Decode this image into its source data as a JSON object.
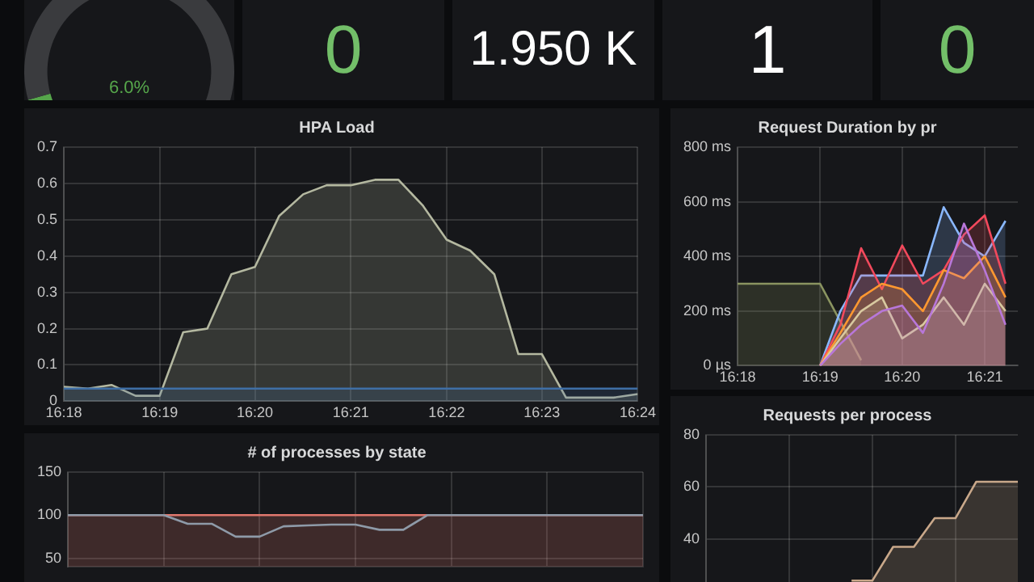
{
  "chart_data": [
    {
      "type": "donut",
      "categories": [
        null,
        null
      ],
      "values": [
        6,
        94
      ],
      "colors": [
        "#56a64b",
        "#3a3b3e"
      ],
      "annotations": [
        "6.0%"
      ]
    },
    {
      "type": "other",
      "annotations": [
        "0",
        "1.950 K",
        "1",
        "0"
      ],
      "colors": [
        "#73bf69",
        "#ffffff",
        "#ffffff",
        "#73bf69"
      ]
    },
    {
      "type": "area",
      "title": "HPA Load",
      "x": [
        16.3,
        16.3042,
        16.3083,
        16.3125,
        16.3167,
        16.3208,
        16.325,
        16.3292,
        16.3333,
        16.3375,
        16.3417,
        16.3458,
        16.35,
        16.3542,
        16.3583,
        16.3625,
        16.3667,
        16.3708,
        16.375,
        16.3792,
        16.3833,
        16.3875,
        16.3917,
        16.3958,
        16.4
      ],
      "series": [
        {
          "color": "#b4b8a0",
          "values": [
            0.04,
            0.035,
            0.045,
            0.015,
            0.015,
            0.19,
            0.2,
            0.35,
            0.37,
            0.51,
            0.57,
            0.595,
            0.595,
            0.61,
            0.61,
            0.54,
            0.445,
            0.415,
            0.35,
            0.13,
            0.13,
            0.01,
            0.01,
            0.01,
            0.02
          ]
        },
        {
          "color": "#3f6fa6",
          "values": [
            0.035,
            0.035,
            0.035,
            0.035,
            0.035,
            0.035,
            0.035,
            0.035,
            0.035,
            0.035,
            0.035,
            0.035,
            0.035,
            0.035,
            0.035,
            0.035,
            0.035,
            0.035,
            0.035,
            0.035,
            0.035,
            0.035,
            0.035,
            0.035,
            0.035
          ]
        }
      ],
      "xlim": [
        16.3,
        16.4
      ],
      "xticks": [
        {
          "value": 16.3,
          "label": "16:18"
        },
        {
          "value": 16.3167,
          "label": "16:19"
        },
        {
          "value": 16.3333,
          "label": "16:20"
        },
        {
          "value": 16.35,
          "label": "16:21"
        },
        {
          "value": 16.3667,
          "label": "16:22"
        },
        {
          "value": 16.3833,
          "label": "16:23"
        },
        {
          "value": 16.4,
          "label": "16:24"
        }
      ],
      "ylim": [
        0,
        0.7
      ],
      "yticks": [
        0,
        0.1,
        0.2,
        0.3,
        0.4,
        0.5,
        0.6,
        0.7
      ],
      "grid": true
    },
    {
      "type": "area",
      "title": "Request Duration by pr",
      "x": [
        16.3167,
        16.3208,
        16.325,
        16.3292,
        16.3333,
        16.3375,
        16.3417,
        16.3458,
        16.35,
        16.3542
      ],
      "series": [
        {
          "color": "#8a9460",
          "x": [
            16.3,
            16.3167,
            16.325
          ],
          "values": [
            300,
            300,
            20
          ]
        },
        {
          "color": "#8ab8ff",
          "values": [
            0,
            200,
            330,
            330,
            330,
            330,
            580,
            450,
            400,
            530
          ]
        },
        {
          "color": "#f2495c",
          "values": [
            0,
            150,
            430,
            280,
            440,
            300,
            350,
            480,
            550,
            300
          ]
        },
        {
          "color": "#ff9830",
          "values": [
            0,
            120,
            250,
            300,
            280,
            200,
            350,
            320,
            400,
            250
          ]
        },
        {
          "color": "#d8c9a0",
          "values": [
            0,
            100,
            200,
            250,
            100,
            150,
            250,
            150,
            300,
            200
          ]
        },
        {
          "color": "#b877d9",
          "values": [
            0,
            80,
            150,
            200,
            220,
            120,
            300,
            520,
            350,
            150
          ]
        }
      ],
      "xlim": [
        16.3,
        16.3567
      ],
      "xticks": [
        {
          "value": 16.3,
          "label": "16:18"
        },
        {
          "value": 16.3167,
          "label": "16:19"
        },
        {
          "value": 16.3333,
          "label": "16:20"
        },
        {
          "value": 16.35,
          "label": "16:21"
        }
      ],
      "ylim": [
        0,
        800
      ],
      "yticks": [
        {
          "value": 0,
          "label": "0 µs"
        },
        {
          "value": 200,
          "label": "200 ms"
        },
        {
          "value": 400,
          "label": "400 ms"
        },
        {
          "value": 600,
          "label": "600 ms"
        },
        {
          "value": 800,
          "label": "800 ms"
        }
      ],
      "grid": true
    },
    {
      "type": "area",
      "title": "# of processes by state",
      "categories": [
        null,
        null,
        null,
        null,
        null,
        null,
        null,
        null,
        null,
        null,
        null,
        null,
        null,
        null,
        null,
        null,
        null,
        null,
        null,
        null,
        null,
        null,
        null,
        null,
        null
      ],
      "series": [
        {
          "color": "#e0786e",
          "values": [
            100,
            100,
            100,
            100,
            100,
            100,
            100,
            100,
            100,
            100,
            100,
            100,
            100,
            100,
            100,
            100,
            100,
            100,
            100,
            100,
            100,
            100,
            100,
            100,
            100
          ]
        },
        {
          "type": "line",
          "color": "#8e9aa8",
          "values": [
            100,
            100,
            100,
            100,
            100,
            90,
            90,
            75,
            75,
            87,
            88,
            89,
            89,
            83,
            83,
            100,
            100,
            100,
            100,
            100,
            100,
            100,
            100,
            100,
            100
          ]
        }
      ],
      "ylim": [
        40,
        150
      ],
      "yticks": [
        50,
        100,
        150
      ],
      "grid": true,
      "tick_labels": "y"
    },
    {
      "type": "area",
      "title": "Requests per process",
      "categories": [
        null,
        null,
        null,
        null,
        null,
        null,
        null,
        null,
        null,
        null,
        null,
        null,
        null,
        null,
        null,
        null
      ],
      "series": [
        {
          "color": "#c9a88a",
          "values": [
            null,
            null,
            null,
            null,
            null,
            null,
            null,
            24,
            24,
            37,
            37,
            48,
            48,
            62,
            62,
            62
          ]
        }
      ],
      "ylim": [
        20,
        80
      ],
      "yticks": [
        40,
        60,
        80
      ],
      "grid": true,
      "tick_labels": "y"
    }
  ]
}
